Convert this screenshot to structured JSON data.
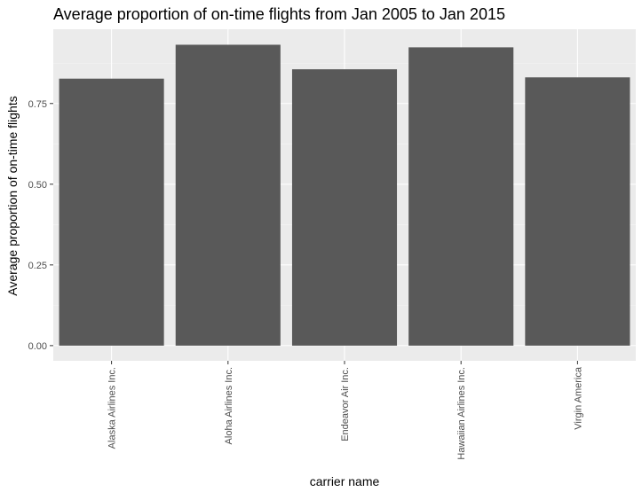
{
  "chart_data": {
    "type": "bar",
    "title": "Average proportion of on-time flights from Jan 2005 to Jan 2015",
    "xlabel": "carrier name",
    "ylabel": "Average proportion of on-time flights",
    "categories": [
      "Alaska Airlines Inc.",
      "Aloha Airlines Inc.",
      "Endeavor Air Inc.",
      "Hawaiian Airlines Inc.",
      "Virgin America"
    ],
    "values": [
      0.827,
      0.932,
      0.856,
      0.924,
      0.831
    ],
    "ylim": [
      -0.047,
      0.98
    ],
    "yticks": [
      0.0,
      0.25,
      0.5,
      0.75
    ],
    "ytick_labels": [
      "0.00",
      "0.25",
      "0.50",
      "0.75"
    ],
    "grid": true,
    "legend": "none",
    "colors": {
      "bar": "#595959",
      "panel": "#ebebeb",
      "grid_major": "#ffffff",
      "grid_minor": "#f5f5f5",
      "tick_text": "#4d4d4d"
    }
  }
}
